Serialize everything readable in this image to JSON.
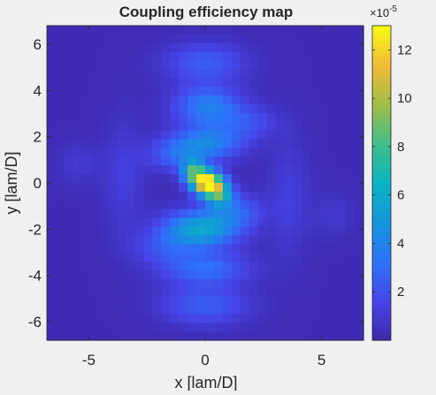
{
  "chart_data": {
    "type": "heatmap",
    "title": "Coupling efficiency map",
    "xlabel": "x [lam/D]",
    "ylabel": "y [lam/D]",
    "xlim": [
      -6.8,
      6.8
    ],
    "ylim": [
      -6.8,
      6.8
    ],
    "xticks": [
      -5,
      0,
      5
    ],
    "yticks": [
      -6,
      -4,
      -2,
      0,
      2,
      4,
      6
    ],
    "colorbar": {
      "range": [
        0,
        13
      ],
      "ticks": [
        2,
        4,
        6,
        8,
        10,
        12
      ],
      "exponent_base": "×10",
      "exponent": "-5",
      "colormap": "parula"
    },
    "peak": {
      "x": 0.1,
      "y": 0.0,
      "value": 12.8
    },
    "features": [
      {
        "x": 0.1,
        "y": 0.0,
        "sx": 0.45,
        "sy": 0.35,
        "value": 12.8
      },
      {
        "x": -0.5,
        "y": 0.5,
        "sx": 0.35,
        "sy": 0.35,
        "value": 6.5
      },
      {
        "x": 0.6,
        "y": -0.5,
        "sx": 0.4,
        "sy": 0.35,
        "value": 6.0
      },
      {
        "x": -0.2,
        "y": -2.0,
        "sx": 1.1,
        "sy": 0.55,
        "value": 5.5
      },
      {
        "x": 0.1,
        "y": 1.7,
        "sx": 1.0,
        "sy": 0.5,
        "value": 3.8
      },
      {
        "x": 0.1,
        "y": 3.3,
        "sx": 1.0,
        "sy": 0.6,
        "value": 3.5
      },
      {
        "x": 0.0,
        "y": -3.7,
        "sx": 1.3,
        "sy": 0.5,
        "value": 2.8
      },
      {
        "x": 0.0,
        "y": -5.3,
        "sx": 1.3,
        "sy": 0.6,
        "value": 2.2
      },
      {
        "x": 0.0,
        "y": 5.2,
        "sx": 1.2,
        "sy": 0.6,
        "value": 2.2
      },
      {
        "x": 1.3,
        "y": -1.2,
        "sx": 0.8,
        "sy": 0.5,
        "value": 2.4
      },
      {
        "x": -1.3,
        "y": 1.2,
        "sx": 0.8,
        "sy": 0.5,
        "value": 2.2
      },
      {
        "x": -1.8,
        "y": -2.8,
        "sx": 0.9,
        "sy": 0.5,
        "value": 1.6
      },
      {
        "x": 1.8,
        "y": 2.6,
        "sx": 0.9,
        "sy": 0.5,
        "value": 1.6
      },
      {
        "x": -3.5,
        "y": 0.2,
        "sx": 0.6,
        "sy": 1.8,
        "value": 1.0
      },
      {
        "x": 3.6,
        "y": -0.6,
        "sx": 0.6,
        "sy": 1.8,
        "value": 1.0
      },
      {
        "x": -5.4,
        "y": 0.8,
        "sx": 0.6,
        "sy": 0.6,
        "value": 0.8
      },
      {
        "x": 5.5,
        "y": -1.4,
        "sx": 0.6,
        "sy": 0.6,
        "value": 0.7
      }
    ],
    "background_value": 0.3
  },
  "colors": {
    "figure_background": "#f0f0f0",
    "axis": "#262626"
  }
}
